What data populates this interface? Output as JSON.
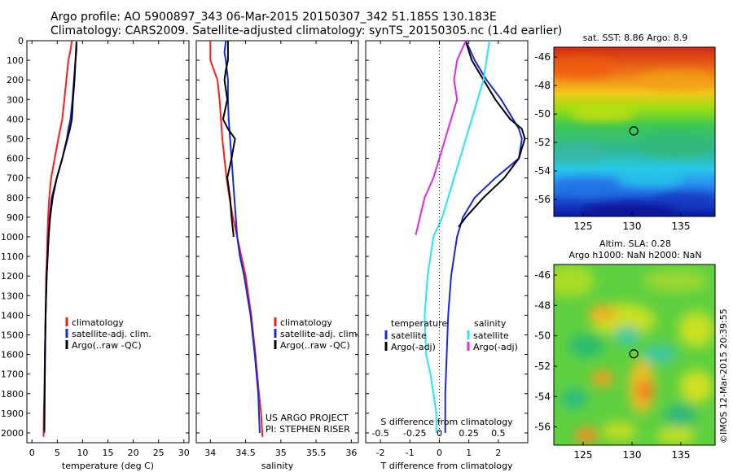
{
  "header": {
    "title_line1": "Argo profile: AO 5900897_343 06-Mar-2015 20150307_342 51.185S 130.183E",
    "title_line2": "Climatology: CARS2009. Satellite-adjusted climatology: synTS_20150305.nc (1.4d earlier)"
  },
  "side_text": "©IMOS 12-Mar-2015 20:39:55",
  "project_text": {
    "line1": "US ARGO PROJECT",
    "line2": "PI: STEPHEN RISER"
  },
  "colors": {
    "climatology": "#ff1a1a",
    "satellite": "#1428dc",
    "argo": "#000000",
    "s_satellite": "#22e8f0",
    "s_argo": "#e824e8"
  },
  "chart_data": [
    {
      "type": "line",
      "xlabel": "temperature (deg C)",
      "ylabel": "",
      "xlim": [
        -1,
        31
      ],
      "ylim": [
        2050,
        0
      ],
      "xticks": [
        0,
        5,
        10,
        15,
        20,
        25,
        30
      ],
      "yticks": [
        0,
        100,
        200,
        300,
        400,
        500,
        600,
        700,
        800,
        900,
        1000,
        1100,
        1200,
        1300,
        1400,
        1500,
        1600,
        1700,
        1800,
        1900,
        2000
      ],
      "legend": [
        "climatology",
        "satellite-adj. clim.",
        "Argo(..raw -QC)"
      ],
      "legend_position": "lower-left",
      "series": [
        {
          "name": "climatology",
          "color": "#ff1a1a",
          "x": [
            7.9,
            7.6,
            7.2,
            6.8,
            6.4,
            6.0,
            5.6,
            5.2,
            4.5,
            3.8,
            3.4,
            3.2,
            3.05,
            2.95,
            2.8,
            2.7,
            2.55,
            2.45,
            2.35,
            2.3
          ],
          "y": [
            0,
            50,
            100,
            200,
            300,
            400,
            450,
            500,
            600,
            700,
            800,
            900,
            1000,
            1100,
            1200,
            1400,
            1600,
            1800,
            1900,
            2020
          ]
        },
        {
          "name": "satellite-adj. clim.",
          "color": "#1428dc",
          "x": [
            8.8,
            8.8,
            8.6,
            8.3,
            8.0,
            7.6,
            7.2,
            6.9,
            6.0,
            4.9,
            3.9,
            3.5,
            3.3,
            3.1,
            2.9,
            2.7,
            2.55,
            2.5,
            2.45
          ],
          "y": [
            10,
            50,
            100,
            200,
            300,
            400,
            450,
            500,
            600,
            700,
            800,
            900,
            1000,
            1100,
            1200,
            1400,
            1600,
            1800,
            2000
          ]
        },
        {
          "name": "Argo(..raw -QC)",
          "color": "#000000",
          "x": [
            8.8,
            8.7,
            8.6,
            8.4,
            8.1,
            7.9,
            7.5,
            7.0,
            6.0,
            4.9,
            4.1,
            3.6,
            3.3,
            3.1,
            2.9,
            2.7,
            2.6,
            2.5,
            2.45
          ],
          "y": [
            5,
            50,
            100,
            200,
            300,
            400,
            450,
            500,
            600,
            700,
            800,
            900,
            1000,
            1100,
            1200,
            1400,
            1600,
            1800,
            1990
          ]
        }
      ]
    },
    {
      "type": "line",
      "xlabel": "salinity",
      "xlim": [
        33.8,
        36.1
      ],
      "ylim": [
        2050,
        0
      ],
      "xticks": [
        34,
        34.5,
        35,
        35.5,
        36
      ],
      "legend": [
        "climatology",
        "satellite-adj. clim.",
        "Argo(..raw -QC)"
      ],
      "legend_position": "lower-right",
      "series": [
        {
          "name": "climatology",
          "color": "#ff1a1a",
          "x": [
            34.0,
            34.0,
            34.05,
            34.1,
            34.13,
            34.15,
            34.17,
            34.2,
            34.23,
            34.27,
            34.32,
            34.38,
            34.44,
            34.5,
            34.58,
            34.64,
            34.69,
            34.72,
            34.74
          ],
          "y": [
            0,
            100,
            150,
            200,
            300,
            400,
            500,
            600,
            700,
            800,
            900,
            1000,
            1100,
            1200,
            1400,
            1600,
            1800,
            1900,
            2020
          ]
        },
        {
          "name": "satellite-adj. clim.",
          "color": "#1428dc",
          "x": [
            34.22,
            34.2,
            34.22,
            34.25,
            34.25,
            34.26,
            34.28,
            34.3,
            34.32,
            34.34,
            34.36,
            34.38,
            34.42,
            34.48,
            34.57,
            34.63,
            34.68,
            34.7
          ],
          "y": [
            0,
            60,
            100,
            200,
            300,
            400,
            500,
            600,
            700,
            800,
            900,
            1000,
            1100,
            1200,
            1400,
            1600,
            1800,
            2000
          ]
        },
        {
          "name": "Argo(..raw -QC)",
          "color": "#000000",
          "x": [
            34.25,
            34.25,
            34.22,
            34.2,
            34.24,
            34.18,
            34.25,
            34.35,
            34.3,
            34.24,
            34.28,
            34.3,
            34.33
          ],
          "y": [
            0,
            100,
            150,
            200,
            300,
            400,
            450,
            500,
            600,
            700,
            800,
            900,
            1000
          ]
        }
      ]
    },
    {
      "type": "line",
      "xlabel": "T difference from climatology",
      "top_label": "S difference from climatology",
      "xlim": [
        -2.5,
        3
      ],
      "ylim": [
        2050,
        0
      ],
      "xticks": [
        -2,
        -1,
        0,
        1,
        2
      ],
      "top_ticks": [
        "-0.5",
        "-0.25",
        "0",
        "0.25",
        "0.5"
      ],
      "legend_left_title": "temperature",
      "legend_right_title": "salinity",
      "legend_left": [
        "satellite",
        "Argo(-adj)"
      ],
      "legend_right": [
        "satellite",
        "Argo(-adj)"
      ],
      "series": [
        {
          "name": "T satellite",
          "color": "#1428dc",
          "x": [
            0.9,
            1.2,
            1.6,
            2.1,
            2.5,
            2.7,
            2.8,
            2.7,
            1.9,
            1.2,
            0.8,
            0.6,
            0.5,
            0.4,
            0.3,
            0.25,
            0.2,
            0.2
          ],
          "y": [
            0,
            100,
            200,
            300,
            400,
            450,
            500,
            600,
            700,
            800,
            900,
            1000,
            1100,
            1200,
            1400,
            1600,
            1800,
            2000
          ]
        },
        {
          "name": "T Argo(-adj)",
          "color": "#000000",
          "x": [
            0.9,
            1.1,
            1.5,
            1.9,
            2.4,
            2.8,
            2.9,
            2.7,
            2.2,
            1.5,
            0.9,
            0.65
          ],
          "y": [
            5,
            100,
            200,
            300,
            400,
            450,
            500,
            600,
            700,
            800,
            900,
            950
          ]
        },
        {
          "name": "S satellite",
          "color": "#22e8f0",
          "x": [
            1.7,
            1.6,
            1.5,
            1.3,
            1.1,
            0.9,
            0.7,
            0.5,
            0.3,
            0.1,
            -0.2,
            -0.4,
            -0.5,
            -0.45,
            -0.3,
            -0.2,
            -0.1,
            -0.1
          ],
          "y": [
            0,
            100,
            200,
            300,
            400,
            500,
            600,
            700,
            800,
            900,
            1000,
            1200,
            1400,
            1600,
            1700,
            1800,
            1900,
            2000
          ]
        },
        {
          "name": "S Argo(-adj)",
          "color": "#e824e8",
          "x": [
            0.9,
            0.6,
            0.5,
            0.6,
            0.4,
            0.2,
            0.0,
            -0.2,
            -0.5,
            -0.8
          ],
          "y": [
            0,
            100,
            200,
            300,
            400,
            500,
            600,
            700,
            800,
            990
          ]
        }
      ]
    },
    {
      "type": "heatmap",
      "title": "sat. SST: 8.86 Argo: 8.9",
      "xlim": [
        122,
        138.5
      ],
      "ylim": [
        -57.2,
        -45.3
      ],
      "xticks": [
        125,
        130,
        135
      ],
      "yticks": [
        -46,
        -48,
        -50,
        -52,
        -54,
        -56
      ],
      "marker": {
        "x": 130.183,
        "y": -51.185
      }
    },
    {
      "type": "heatmap",
      "title_line1": "Altim. SLA: 0.28",
      "title_line2": "Argo h1000: NaN h2000: NaN",
      "xlim": [
        122,
        138.5
      ],
      "ylim": [
        -57.2,
        -45.3
      ],
      "xticks": [
        125,
        130,
        135
      ],
      "yticks": [
        -46,
        -48,
        -50,
        -52,
        -54,
        -56
      ],
      "marker": {
        "x": 130.183,
        "y": -51.185
      }
    }
  ]
}
